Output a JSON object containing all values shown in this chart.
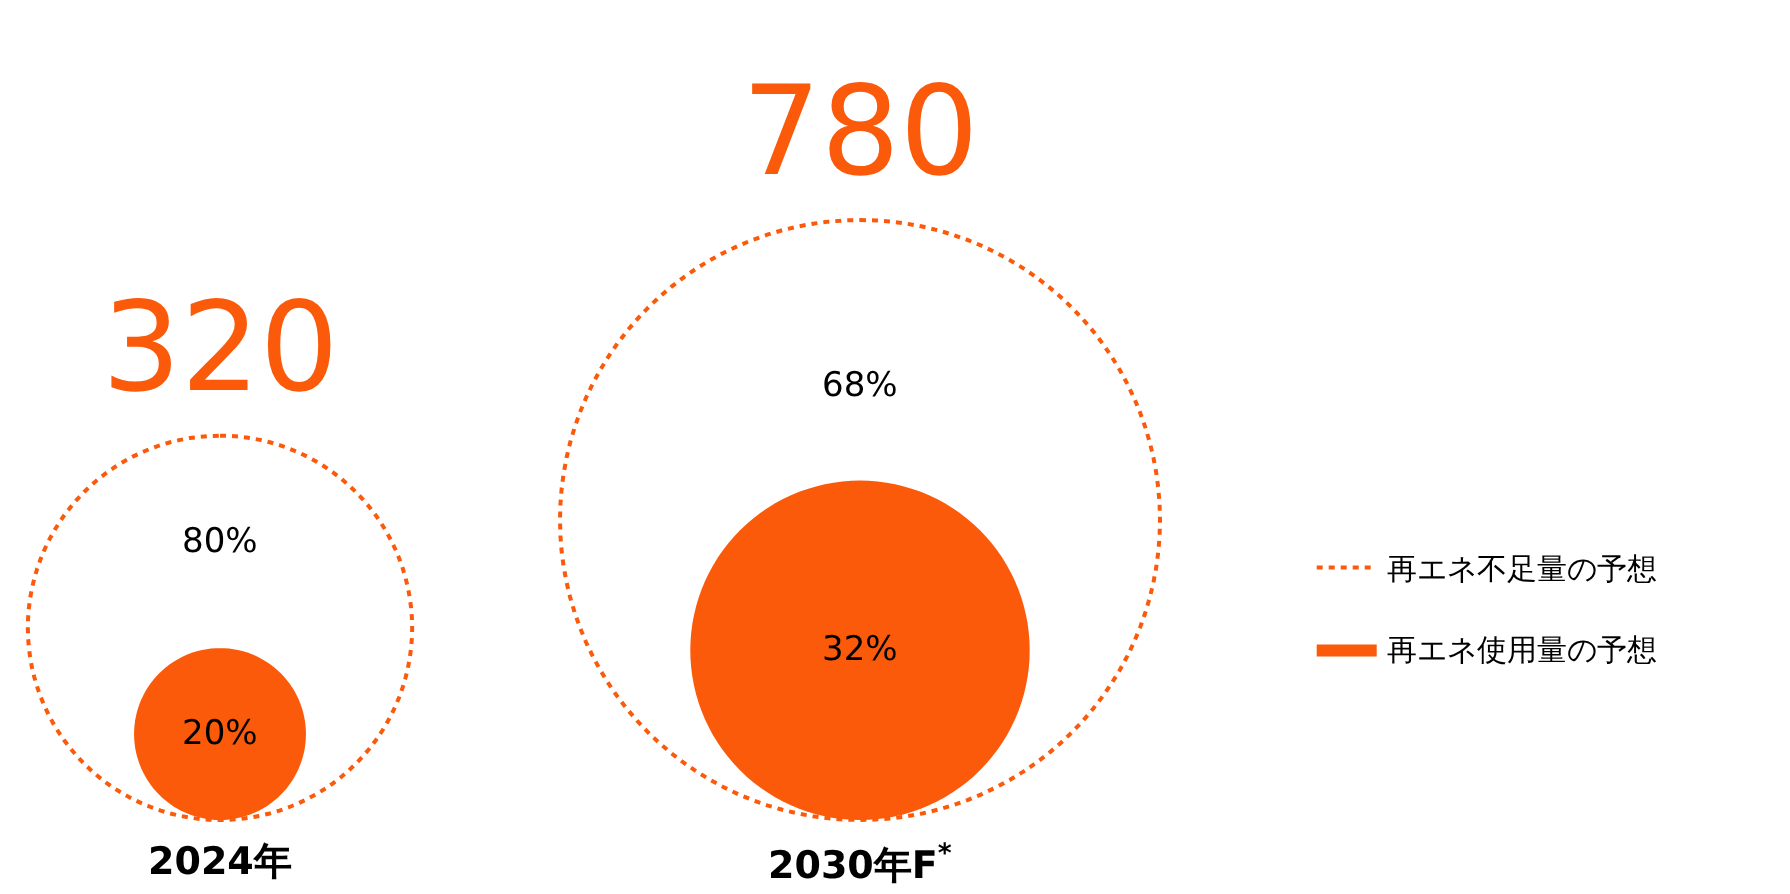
{
  "chart_data": {
    "type": "other",
    "categories": [
      "2024年",
      "2030年F$^{*}$"
    ],
    "series": [
      {
        "name": "再エネ不足量の予想",
        "color": "#fa5a0a",
        "values": [
          80,
          68
        ],
        "value_labels": [
          "80%",
          "68%"
        ],
        "line_style": "dotted"
      },
      {
        "name": "再エネ使用量の予想",
        "color": "#fa5a0a",
        "values": [
          20,
          32
        ],
        "value_labels": [
          "20%",
          "32%"
        ]
      }
    ],
    "totals": [
      "320",
      "780"
    ],
    "legend": "right"
  }
}
